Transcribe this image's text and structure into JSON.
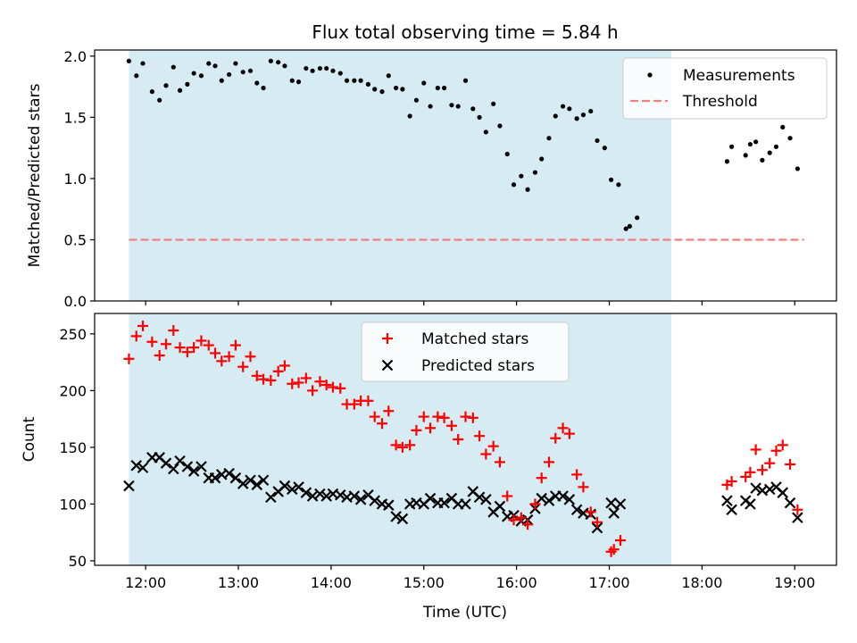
{
  "title": "Flux total observing time = 5.84 h",
  "xlabel": "Time (UTC)",
  "x_tick_labels": [
    "12:00",
    "13:00",
    "14:00",
    "15:00",
    "16:00",
    "17:00",
    "18:00",
    "19:00"
  ],
  "colors": {
    "shade": "#add8e6",
    "threshold": "#f08080",
    "matched": "#ff0000",
    "predicted": "#000000",
    "measurements": "#000000"
  },
  "chart_data": [
    {
      "type": "scatter",
      "ylabel": "Matched/Predicted stars",
      "xlim_hours": [
        11.45,
        19.45
      ],
      "ylim": [
        0,
        2.05
      ],
      "y_ticks": [
        0.0,
        0.5,
        1.0,
        1.5,
        2.0
      ],
      "y_tick_labels": [
        "0.0",
        "0.5",
        "1.0",
        "1.5",
        "2.0"
      ],
      "shaded_region_hours": [
        11.82,
        17.67
      ],
      "legend_position": "upper right",
      "legend": {
        "measurements": "Measurements",
        "threshold": "Threshold"
      },
      "threshold": {
        "y": 0.5,
        "x_range_hours": [
          11.82,
          19.1
        ]
      },
      "series": [
        {
          "name": "Measurements",
          "marker": "dot",
          "points": [
            [
              11.82,
              1.96
            ],
            [
              11.9,
              1.84
            ],
            [
              11.97,
              1.94
            ],
            [
              12.07,
              1.71
            ],
            [
              12.15,
              1.64
            ],
            [
              12.22,
              1.76
            ],
            [
              12.3,
              1.91
            ],
            [
              12.37,
              1.72
            ],
            [
              12.45,
              1.77
            ],
            [
              12.52,
              1.86
            ],
            [
              12.6,
              1.84
            ],
            [
              12.68,
              1.94
            ],
            [
              12.75,
              1.92
            ],
            [
              12.82,
              1.8
            ],
            [
              12.9,
              1.85
            ],
            [
              12.97,
              1.94
            ],
            [
              13.05,
              1.87
            ],
            [
              13.13,
              1.88
            ],
            [
              13.2,
              1.78
            ],
            [
              13.27,
              1.74
            ],
            [
              13.35,
              1.96
            ],
            [
              13.43,
              1.95
            ],
            [
              13.5,
              1.92
            ],
            [
              13.58,
              1.8
            ],
            [
              13.65,
              1.79
            ],
            [
              13.73,
              1.9
            ],
            [
              13.8,
              1.88
            ],
            [
              13.88,
              1.9
            ],
            [
              13.95,
              1.9
            ],
            [
              14.02,
              1.88
            ],
            [
              14.1,
              1.86
            ],
            [
              14.17,
              1.8
            ],
            [
              14.25,
              1.8
            ],
            [
              14.32,
              1.8
            ],
            [
              14.4,
              1.77
            ],
            [
              14.47,
              1.73
            ],
            [
              14.55,
              1.71
            ],
            [
              14.62,
              1.84
            ],
            [
              14.7,
              1.74
            ],
            [
              14.77,
              1.73
            ],
            [
              14.85,
              1.51
            ],
            [
              14.92,
              1.64
            ],
            [
              15.0,
              1.78
            ],
            [
              15.07,
              1.59
            ],
            [
              15.15,
              1.74
            ],
            [
              15.22,
              1.74
            ],
            [
              15.3,
              1.6
            ],
            [
              15.37,
              1.59
            ],
            [
              15.45,
              1.8
            ],
            [
              15.53,
              1.57
            ],
            [
              15.6,
              1.5
            ],
            [
              15.67,
              1.38
            ],
            [
              15.75,
              1.61
            ],
            [
              15.82,
              1.43
            ],
            [
              15.9,
              1.2
            ],
            [
              15.97,
              0.95
            ],
            [
              16.05,
              1.02
            ],
            [
              16.12,
              0.91
            ],
            [
              16.2,
              1.05
            ],
            [
              16.27,
              1.16
            ],
            [
              16.35,
              1.33
            ],
            [
              16.42,
              1.51
            ],
            [
              16.5,
              1.59
            ],
            [
              16.57,
              1.57
            ],
            [
              16.65,
              1.49
            ],
            [
              16.72,
              1.52
            ],
            [
              16.8,
              1.55
            ],
            [
              16.87,
              1.31
            ],
            [
              16.95,
              1.25
            ],
            [
              17.02,
              0.99
            ],
            [
              17.1,
              0.95
            ],
            [
              17.18,
              0.59
            ],
            [
              17.22,
              0.61
            ],
            [
              17.3,
              0.68
            ],
            [
              18.27,
              1.14
            ],
            [
              18.32,
              1.26
            ],
            [
              18.47,
              1.19
            ],
            [
              18.52,
              1.28
            ],
            [
              18.58,
              1.3
            ],
            [
              18.65,
              1.15
            ],
            [
              18.73,
              1.21
            ],
            [
              18.8,
              1.26
            ],
            [
              18.87,
              1.42
            ],
            [
              18.95,
              1.33
            ],
            [
              19.03,
              1.08
            ]
          ]
        }
      ]
    },
    {
      "type": "scatter",
      "ylabel": "Count",
      "xlim_hours": [
        11.45,
        19.45
      ],
      "ylim": [
        46,
        268
      ],
      "y_ticks": [
        50,
        100,
        150,
        200,
        250
      ],
      "y_tick_labels": [
        "50",
        "100",
        "150",
        "200",
        "250"
      ],
      "shaded_region_hours": [
        11.82,
        17.67
      ],
      "legend_position": "upper center",
      "series": [
        {
          "name": "Matched stars",
          "marker": "plus",
          "points": [
            [
              11.82,
              228
            ],
            [
              11.9,
              248
            ],
            [
              11.97,
              257
            ],
            [
              12.07,
              243
            ],
            [
              12.15,
              231
            ],
            [
              12.22,
              241
            ],
            [
              12.3,
              253
            ],
            [
              12.37,
              238
            ],
            [
              12.45,
              234
            ],
            [
              12.52,
              238
            ],
            [
              12.6,
              244
            ],
            [
              12.68,
              240
            ],
            [
              12.75,
              233
            ],
            [
              12.82,
              226
            ],
            [
              12.9,
              230
            ],
            [
              12.97,
              240
            ],
            [
              13.05,
              221
            ],
            [
              13.13,
              230
            ],
            [
              13.2,
              213
            ],
            [
              13.27,
              210
            ],
            [
              13.35,
              209
            ],
            [
              13.43,
              217
            ],
            [
              13.5,
              222
            ],
            [
              13.58,
              206
            ],
            [
              13.65,
              207
            ],
            [
              13.73,
              211
            ],
            [
              13.8,
              200
            ],
            [
              13.88,
              208
            ],
            [
              13.95,
              205
            ],
            [
              14.02,
              203
            ],
            [
              14.1,
              202
            ],
            [
              14.17,
              188
            ],
            [
              14.25,
              188
            ],
            [
              14.32,
              191
            ],
            [
              14.4,
              191
            ],
            [
              14.47,
              177
            ],
            [
              14.55,
              171
            ],
            [
              14.62,
              182
            ],
            [
              14.7,
              152
            ],
            [
              14.77,
              150
            ],
            [
              14.85,
              152
            ],
            [
              14.92,
              165
            ],
            [
              15.0,
              177
            ],
            [
              15.07,
              167
            ],
            [
              15.15,
              177
            ],
            [
              15.22,
              176
            ],
            [
              15.3,
              169
            ],
            [
              15.37,
              157
            ],
            [
              15.45,
              177
            ],
            [
              15.53,
              176
            ],
            [
              15.6,
              160
            ],
            [
              15.67,
              144
            ],
            [
              15.75,
              151
            ],
            [
              15.82,
              137
            ],
            [
              15.9,
              107
            ],
            [
              15.97,
              86
            ],
            [
              16.05,
              88
            ],
            [
              16.12,
              82
            ],
            [
              16.2,
              100
            ],
            [
              16.27,
              123
            ],
            [
              16.35,
              137
            ],
            [
              16.42,
              158
            ],
            [
              16.5,
              167
            ],
            [
              16.57,
              162
            ],
            [
              16.65,
              126
            ],
            [
              16.72,
              115
            ],
            [
              16.8,
              93
            ],
            [
              16.87,
              84
            ],
            [
              17.02,
              58
            ],
            [
              17.05,
              60
            ],
            [
              17.12,
              68
            ],
            [
              18.27,
              117
            ],
            [
              18.32,
              120
            ],
            [
              18.47,
              124
            ],
            [
              18.52,
              128
            ],
            [
              18.58,
              148
            ],
            [
              18.65,
              130
            ],
            [
              18.73,
              136
            ],
            [
              18.8,
              147
            ],
            [
              18.87,
              152
            ],
            [
              18.95,
              135
            ],
            [
              19.03,
              95
            ]
          ]
        },
        {
          "name": "Predicted stars",
          "marker": "x",
          "points": [
            [
              11.82,
              116
            ],
            [
              11.9,
              134
            ],
            [
              11.97,
              132
            ],
            [
              12.07,
              141
            ],
            [
              12.15,
              141
            ],
            [
              12.22,
              136
            ],
            [
              12.3,
              131
            ],
            [
              12.37,
              138
            ],
            [
              12.45,
              133
            ],
            [
              12.52,
              129
            ],
            [
              12.6,
              133
            ],
            [
              12.68,
              123
            ],
            [
              12.75,
              123
            ],
            [
              12.82,
              126
            ],
            [
              12.9,
              127
            ],
            [
              12.97,
              123
            ],
            [
              13.05,
              118
            ],
            [
              13.13,
              121
            ],
            [
              13.2,
              117
            ],
            [
              13.27,
              121
            ],
            [
              13.35,
              106
            ],
            [
              13.43,
              111
            ],
            [
              13.5,
              116
            ],
            [
              13.58,
              113
            ],
            [
              13.65,
              115
            ],
            [
              13.73,
              110
            ],
            [
              13.8,
              107
            ],
            [
              13.88,
              109
            ],
            [
              13.95,
              107
            ],
            [
              14.02,
              109
            ],
            [
              14.1,
              108
            ],
            [
              14.17,
              106
            ],
            [
              14.25,
              107
            ],
            [
              14.32,
              104
            ],
            [
              14.4,
              108
            ],
            [
              14.47,
              103
            ],
            [
              14.55,
              100
            ],
            [
              14.62,
              99
            ],
            [
              14.7,
              89
            ],
            [
              14.77,
              87
            ],
            [
              14.85,
              100
            ],
            [
              14.92,
              101
            ],
            [
              15.0,
              100
            ],
            [
              15.07,
              105
            ],
            [
              15.15,
              101
            ],
            [
              15.22,
              101
            ],
            [
              15.3,
              105
            ],
            [
              15.37,
              100
            ],
            [
              15.45,
              100
            ],
            [
              15.53,
              111
            ],
            [
              15.6,
              106
            ],
            [
              15.67,
              104
            ],
            [
              15.75,
              93
            ],
            [
              15.82,
              98
            ],
            [
              15.9,
              89
            ],
            [
              15.97,
              90
            ],
            [
              16.05,
              85
            ],
            [
              16.12,
              86
            ],
            [
              16.2,
              96
            ],
            [
              16.27,
              105
            ],
            [
              16.35,
              103
            ],
            [
              16.42,
              107
            ],
            [
              16.5,
              107
            ],
            [
              16.57,
              104
            ],
            [
              16.65,
              95
            ],
            [
              16.72,
              92
            ],
            [
              16.8,
              91
            ],
            [
              16.87,
              79
            ],
            [
              17.02,
              101
            ],
            [
              17.05,
              92
            ],
            [
              17.12,
              100
            ],
            [
              18.27,
              103
            ],
            [
              18.32,
              95
            ],
            [
              18.47,
              103
            ],
            [
              18.52,
              100
            ],
            [
              18.58,
              114
            ],
            [
              18.65,
              112
            ],
            [
              18.73,
              113
            ],
            [
              18.8,
              115
            ],
            [
              18.87,
              110
            ],
            [
              18.95,
              101
            ],
            [
              19.03,
              88
            ]
          ]
        }
      ]
    }
  ]
}
